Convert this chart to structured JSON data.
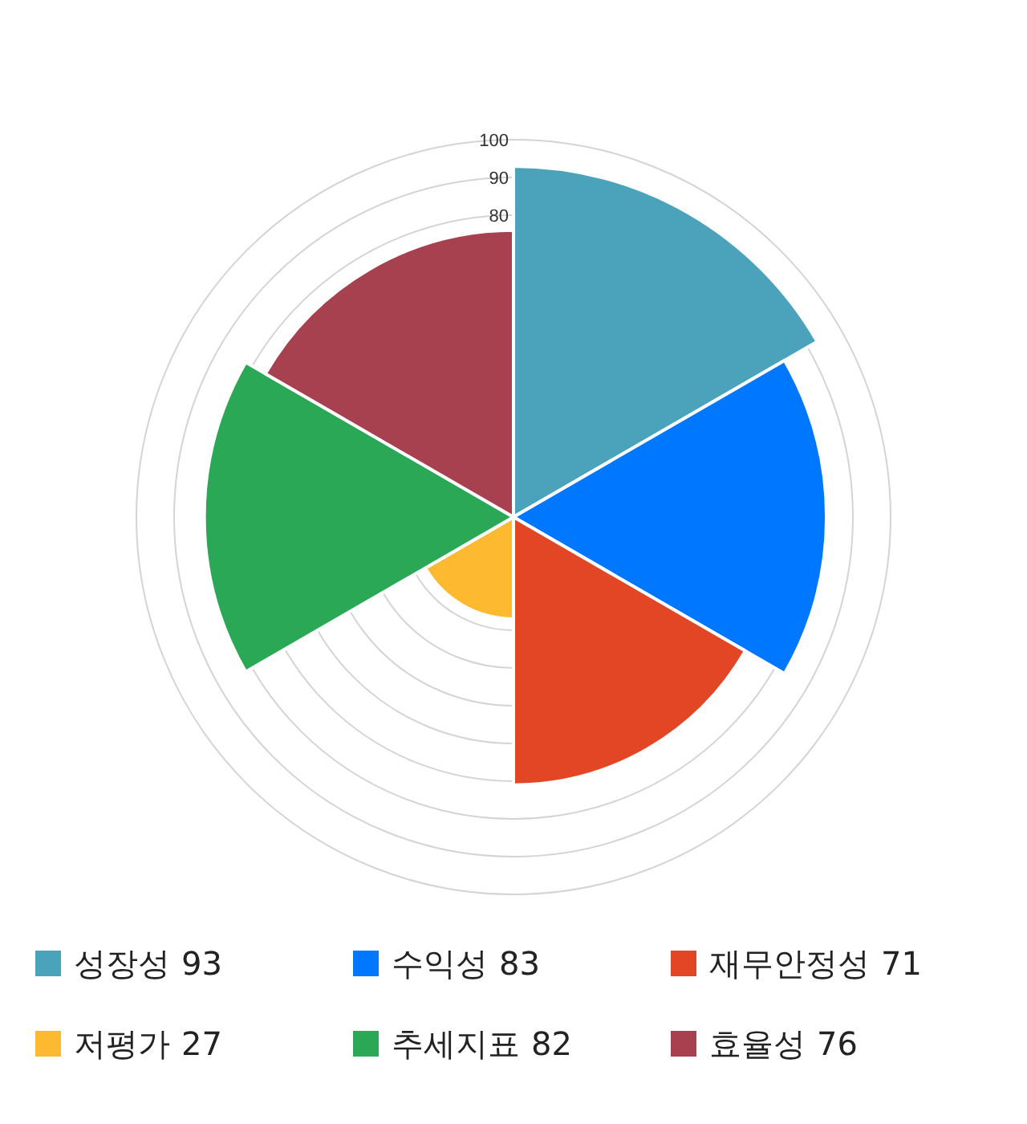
{
  "chart_data": {
    "type": "other",
    "categories": [
      "성장성",
      "수익성",
      "재무안정성",
      "저평가",
      "추세지표",
      "효율성"
    ],
    "values": [
      93,
      83,
      71,
      27,
      82,
      76
    ],
    "value_labels": [
      "93",
      "83",
      "71",
      "27",
      "82",
      "76"
    ],
    "colors": [
      "#4aa3bb",
      "#0077ff",
      "#e24625",
      "#fdb92f",
      "#2ba856",
      "#a8414f"
    ],
    "annotations": [
      "100",
      "90",
      "80"
    ]
  }
}
